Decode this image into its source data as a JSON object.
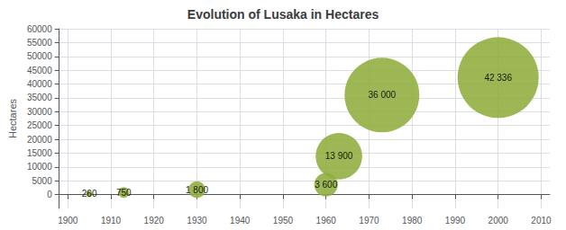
{
  "chart_data": {
    "type": "scatter",
    "title": "Evolution of Lusaka in Hectares",
    "x": [
      1905,
      1913,
      1930,
      1960,
      1963,
      1973,
      2000
    ],
    "values": [
      260,
      750,
      1800,
      3600,
      13900,
      36000,
      42336
    ],
    "sizes": [
      260,
      750,
      1800,
      3600,
      13900,
      36000,
      42336
    ],
    "value_labels": [
      "260",
      "750",
      "1 800",
      "3 600",
      "13 900",
      "36 000",
      "42 336"
    ],
    "data_labels": true,
    "color": "#8fad3e",
    "ylabel": "Hectares",
    "xlim": [
      1898,
      2012
    ],
    "ylim": [
      -5000,
      60000
    ],
    "xticks": [
      1900,
      1910,
      1920,
      1930,
      1940,
      1950,
      1960,
      1970,
      1980,
      1990,
      2000,
      2010
    ],
    "yticks": [
      0,
      5000,
      10000,
      15000,
      20000,
      25000,
      30000,
      35000,
      40000,
      45000,
      50000,
      55000,
      60000
    ],
    "grid": true
  }
}
